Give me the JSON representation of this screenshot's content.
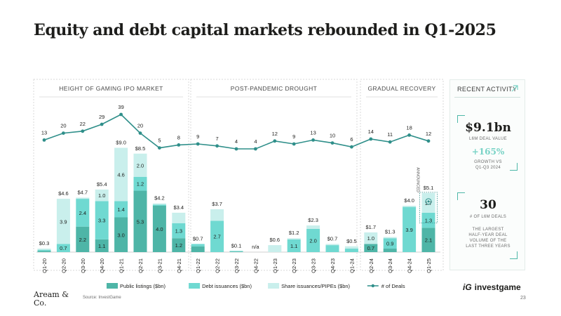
{
  "title": "Equity and debt capital markets rebounded in Q1-2025",
  "chart_data": {
    "type": "bar",
    "stacked": true,
    "unit": "$bn",
    "sections": [
      {
        "label": "HEIGHT OF GAMING IPO MARKET",
        "from": "Q1-20",
        "to": "Q4-21"
      },
      {
        "label": "POST-PANDEMIC DROUGHT",
        "from": "Q1-22",
        "to": "Q1-24"
      },
      {
        "label": "GRADUAL RECOVERY",
        "from": "Q2-24",
        "to": "Q1-25"
      }
    ],
    "categories": [
      "Q1-20",
      "Q2-20",
      "Q3-20",
      "Q4-20",
      "Q1-21",
      "Q2-21",
      "Q3-21",
      "Q4-21",
      "Q1-22",
      "Q2-22",
      "Q3-22",
      "Q4-22",
      "Q1-23",
      "Q2-23",
      "Q3-23",
      "Q4-23",
      "Q1-24",
      "Q2-24",
      "Q3-24",
      "Q4-24",
      "Q1-25"
    ],
    "series": [
      {
        "name": "Public listings ($bn)",
        "color": "#4eb5a7",
        "values": [
          0.1,
          0,
          2.2,
          1.1,
          3.0,
          5.3,
          4.0,
          1.2,
          0.5,
          0,
          0.05,
          0,
          0,
          0,
          0,
          0,
          0,
          0.7,
          0.3,
          0,
          2.1
        ],
        "labels": [
          "",
          "",
          "2.2",
          "1.1",
          "3.0",
          "5.3",
          "4.0",
          "1.2",
          "",
          "",
          "",
          "",
          "",
          "",
          "",
          "",
          "",
          "0.7",
          "",
          "",
          "2.1"
        ]
      },
      {
        "name": "Debt issuances ($bn)",
        "color": "#6fd9d1",
        "values": [
          0.1,
          0.7,
          2.4,
          3.3,
          1.4,
          1.2,
          0.1,
          1.3,
          0.2,
          2.7,
          0.05,
          0,
          0,
          1.1,
          2.0,
          0.6,
          0.3,
          0,
          0.9,
          3.9,
          1.3
        ],
        "labels": [
          "",
          "0.7",
          "2.4",
          "3.3",
          "1.4",
          "1.2",
          "",
          "1.3",
          "",
          "2.7",
          "",
          "",
          "",
          "1.1",
          "2.0",
          "",
          "",
          "",
          "0.9",
          "3.9",
          "1.3"
        ]
      },
      {
        "name": "Share issuances/PIPEs ($bn)",
        "color": "#c9efec",
        "values": [
          0.1,
          3.9,
          0.1,
          1.0,
          4.6,
          2.0,
          0.1,
          0.9,
          0,
          1.0,
          0,
          0,
          0.6,
          0.1,
          0.3,
          0.1,
          0.2,
          1.0,
          0.1,
          0.1,
          1.7
        ],
        "labels": [
          "",
          "3.9",
          "",
          "1.0",
          "4.6",
          "2.0",
          "",
          "",
          "",
          "",
          "",
          "",
          "",
          "",
          "",
          "",
          "",
          "1.0",
          "",
          "",
          "1.7"
        ]
      }
    ],
    "totals": [
      "$0.3",
      "$4.6",
      "$4.7",
      "$5.4",
      "$9.0",
      "$8.5",
      "$4.2",
      "$3.4",
      "$0.7",
      "$3.7",
      "$0.1",
      "n/a",
      "$0.6",
      "$1.2",
      "$2.3",
      "$0.7",
      "$0.5",
      "$1.7",
      "$1.3",
      "$4.0",
      "$5.1"
    ],
    "deals": {
      "name": "# of Deals",
      "color": "#2f8f8a",
      "values": [
        13,
        20,
        22,
        29,
        39,
        20,
        5,
        8,
        9,
        7,
        4,
        4,
        12,
        9,
        13,
        10,
        6,
        14,
        11,
        18,
        12
      ]
    },
    "annotation": "ANNOUNCED",
    "legend_position": "bottom"
  },
  "panel": {
    "title": "RECENT ACTIVITY",
    "value1": "$9.1bn",
    "value1_label": "L6M DEAL VALUE",
    "growth": "+165%",
    "growth_label_1": "GROWTH VS",
    "growth_label_2": "Q1-Q3 2024",
    "value2": "30",
    "value2_label": "# OF L6M DEALS",
    "note_1": "THE LARGEST",
    "note_2": "HALF-YEAR DEAL",
    "note_3": "VOLUME OF THE",
    "note_4": "LAST THREE YEARS"
  },
  "footer": {
    "brand_left_1": "Aream &",
    "brand_left_2": "Co.",
    "source": "Source: InvestGame",
    "brand_right_mark": "iG",
    "brand_right": "investgame",
    "page": "23"
  }
}
